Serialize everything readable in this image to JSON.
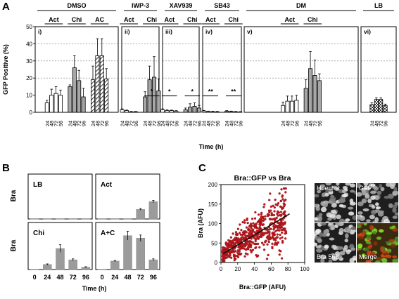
{
  "panel_letters": {
    "a": "A",
    "b": "B",
    "c": "C"
  },
  "chart_data": [
    {
      "panel": "A",
      "type": "bar",
      "ylabel": "GFP Positive (%)",
      "xlabel": "Time (h)",
      "ylim": [
        0,
        50
      ],
      "yticks": [
        0,
        10,
        20,
        30,
        40,
        50
      ],
      "categories": [
        "24",
        "48",
        "72",
        "96"
      ],
      "subpanels": [
        {
          "id": "i)",
          "condition": "DMSO",
          "groups": [
            {
              "label": "Act",
              "style": "open",
              "values": [
                5.5,
                10,
                11,
                10
              ],
              "errors": [
                1.5,
                3.5,
                4,
                3
              ]
            },
            {
              "label": "Chi",
              "style": "grey",
              "values": [
                15,
                26,
                18.5,
                9
              ],
              "errors": [
                1,
                7,
                6,
                5
              ]
            },
            {
              "label": "AC",
              "style": "hatch",
              "values": [
                19,
                33,
                33,
                19.5
              ],
              "errors": [
                8,
                10,
                10,
                6
              ]
            }
          ],
          "signif": []
        },
        {
          "id": "ii)",
          "condition": "IWP-3",
          "groups": [
            {
              "label": "Act",
              "style": "open",
              "values": [
                1.5,
                1,
                0.3,
                0.3
              ],
              "errors": [
                0.5,
                0.3,
                0.2,
                0.2
              ]
            },
            {
              "label": "Chi",
              "style": "grey",
              "values": [
                9,
                19,
                20.5,
                12.5
              ],
              "errors": [
                3,
                8,
                12,
                7
              ]
            }
          ],
          "signif": [
            {
              "label": "*",
              "group": 1
            }
          ]
        },
        {
          "id": "iii)",
          "condition": "XAV939",
          "groups": [
            {
              "label": "Act",
              "style": "open",
              "values": [
                1.5,
                1,
                1,
                0.7
              ],
              "errors": [
                0.5,
                0.4,
                0.3,
                0.3
              ]
            },
            {
              "label": "Chi",
              "style": "grey",
              "values": [
                1.5,
                3,
                3.5,
                2.5
              ],
              "errors": [
                1,
                2,
                2,
                1.5
              ]
            }
          ],
          "signif": [
            {
              "label": "*",
              "group": 0
            },
            {
              "label": "*",
              "group": 1
            }
          ]
        },
        {
          "id": "iv)",
          "condition": "SB43",
          "groups": [
            {
              "label": "Act",
              "style": "open",
              "values": [
                0.8,
                0.5,
                0.4,
                0.3
              ],
              "errors": [
                0.3,
                0.2,
                0.2,
                0.2
              ]
            },
            {
              "label": "Chi",
              "style": "grey",
              "values": [
                0.7,
                0.5,
                0.3,
                0.2
              ],
              "errors": [
                0.3,
                0.2,
                0.2,
                0.2
              ]
            }
          ],
          "signif": [
            {
              "label": "**",
              "group": 0
            },
            {
              "label": "**",
              "group": 1
            }
          ]
        },
        {
          "id": "v)",
          "condition": "DM",
          "groups": [
            {
              "label": "Act",
              "style": "open",
              "values": [
                4,
                6.5,
                6.5,
                7
              ],
              "errors": [
                2,
                3,
                3,
                3
              ]
            },
            {
              "label": "Chi",
              "style": "grey",
              "values": [
                14,
                25.5,
                21.5,
                18.5
              ],
              "errors": [
                5,
                10,
                9,
                4
              ]
            }
          ],
          "signif": []
        },
        {
          "id": "vi)",
          "condition": "LB",
          "groups": [
            {
              "label": "",
              "style": "check",
              "values": [
                4.5,
                7.5,
                7.5,
                4
              ],
              "errors": [
                1,
                1,
                1,
                0.8
              ]
            }
          ],
          "signif": []
        }
      ]
    },
    {
      "panel": "B",
      "type": "bar",
      "ylabel": "Bra",
      "xlabel": "Time (h)",
      "categories": [
        "0",
        "24",
        "48",
        "72",
        "96"
      ],
      "ylim": [
        0,
        0.15
      ],
      "subpanels": [
        {
          "label": "LB",
          "values": [
            0,
            0,
            0,
            0,
            0
          ],
          "errors": [
            0,
            0,
            0,
            0,
            0
          ]
        },
        {
          "label": "Act",
          "values": [
            0,
            0,
            0,
            0.032,
            0.058
          ],
          "errors": [
            0,
            0,
            0,
            0.003,
            0.004
          ]
        },
        {
          "label": "Chi",
          "values": [
            0,
            0.016,
            0.067,
            0.031,
            0.007
          ],
          "errors": [
            0,
            0.002,
            0.012,
            0.003,
            0.002
          ]
        },
        {
          "label": "A+C",
          "values": [
            0,
            0.027,
            0.108,
            0.1,
            0.031
          ],
          "errors": [
            0,
            0.002,
            0.014,
            0.01,
            0.003
          ]
        }
      ]
    },
    {
      "panel": "C",
      "type": "scatter",
      "title": "Bra::GFP vs Bra",
      "xlabel": "Bra::GFP (AFU)",
      "ylabel": "Bra (AFU)",
      "xlim": [
        0,
        100
      ],
      "ylim": [
        0,
        200
      ],
      "xticks": [
        0,
        20,
        40,
        60,
        80,
        100
      ],
      "yticks": [
        0,
        50,
        100,
        150,
        200
      ],
      "point_color": "#c0191f",
      "trend_color": "#111111",
      "trend": {
        "x": [
          2,
          82
        ],
        "y": [
          22,
          125
        ]
      }
    }
  ],
  "images": {
    "tiles": [
      {
        "label": "Hoechst",
        "kind": "nuclei"
      },
      {
        "label": "GFP",
        "kind": "nuclei"
      },
      {
        "label": "Bra 568",
        "kind": "nuclei"
      },
      {
        "label": "Merge",
        "kind": "merge"
      }
    ]
  }
}
